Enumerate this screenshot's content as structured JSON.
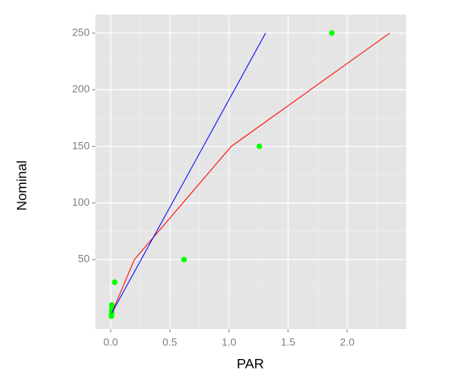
{
  "chart_data": {
    "type": "scatter",
    "x_label": "PAR",
    "y_label": "Nominal",
    "xlim": [
      -0.13,
      2.5
    ],
    "ylim": [
      -11.4,
      266.4
    ],
    "xticks": [
      {
        "value": 0,
        "label": "0.0"
      },
      0.5,
      {
        "value": 1,
        "label": "1.0"
      },
      1.5,
      {
        "value": 2,
        "label": "2.0"
      }
    ],
    "yticks": [
      50,
      100,
      150,
      200,
      250
    ],
    "grid": true,
    "minor_grid": true,
    "series": [
      {
        "mode": "markers",
        "color": "#00ff00",
        "x": [
          1.87,
          1.257,
          0.62,
          0.034,
          0.01,
          0.01,
          0.008,
          0.008,
          0.006
        ],
        "values": [
          250,
          150,
          50,
          30,
          10,
          7,
          4,
          2,
          0
        ]
      },
      {
        "mode": "lines",
        "color": "#ff0000",
        "x": [
          0.01,
          0.2,
          1.02,
          2.36
        ],
        "values": [
          3,
          50,
          150,
          250
        ]
      },
      {
        "mode": "lines",
        "color": "#0000ff",
        "x": [
          0.01,
          1.31
        ],
        "values": [
          3,
          250
        ]
      }
    ]
  }
}
